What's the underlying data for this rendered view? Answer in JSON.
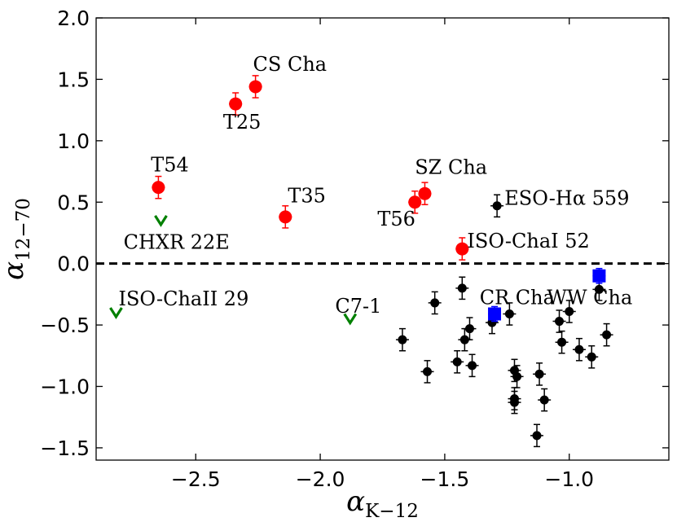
{
  "chart_data": {
    "type": "scatter",
    "xlabel": "α",
    "xlabel_sub": "K−12",
    "ylabel": "α",
    "ylabel_sub": "12−70",
    "xlim": [
      -2.9,
      -0.6
    ],
    "ylim": [
      -1.6,
      2.0
    ],
    "xticks": [
      -2.5,
      -2.0,
      -1.5,
      -1.0
    ],
    "xtick_labels": [
      "−2.5",
      "−2.0",
      "−1.5",
      "−1.0"
    ],
    "yticks": [
      -1.5,
      -1.0,
      -0.5,
      0.0,
      0.5,
      1.0,
      1.5,
      2.0
    ],
    "ytick_labels": [
      "−1.5",
      "−1.0",
      "−0.5",
      "0.0",
      "0.5",
      "1.0",
      "1.5",
      "2.0"
    ],
    "reference_line": {
      "y": 0.0,
      "style": "dashed",
      "color": "#000000"
    },
    "colors": {
      "red": "#ff0000",
      "black": "#000000",
      "blue": "#0000ff",
      "green": "#008000"
    },
    "series": [
      {
        "name": "red",
        "marker": "circle",
        "color": "#ff0000",
        "points": [
          {
            "x": -2.65,
            "y": 0.62,
            "yerr": 0.09
          },
          {
            "x": -2.34,
            "y": 1.3,
            "yerr": 0.09
          },
          {
            "x": -2.26,
            "y": 1.44,
            "yerr": 0.09
          },
          {
            "x": -2.14,
            "y": 0.38,
            "yerr": 0.09
          },
          {
            "x": -1.62,
            "y": 0.5,
            "yerr": 0.09
          },
          {
            "x": -1.58,
            "y": 0.57,
            "yerr": 0.09
          },
          {
            "x": -1.43,
            "y": 0.12,
            "yerr": 0.09
          }
        ]
      },
      {
        "name": "black",
        "marker": "circle-small",
        "color": "#000000",
        "points": [
          {
            "x": -1.29,
            "y": 0.47,
            "yerr": 0.09
          },
          {
            "x": -1.67,
            "y": -0.62,
            "yerr": 0.09
          },
          {
            "x": -1.57,
            "y": -0.88,
            "yerr": 0.09
          },
          {
            "x": -1.54,
            "y": -0.32,
            "yerr": 0.09
          },
          {
            "x": -1.45,
            "y": -0.8,
            "yerr": 0.09
          },
          {
            "x": -1.43,
            "y": -0.2,
            "yerr": 0.09
          },
          {
            "x": -1.42,
            "y": -0.62,
            "yerr": 0.09
          },
          {
            "x": -1.4,
            "y": -0.53,
            "yerr": 0.09
          },
          {
            "x": -1.39,
            "y": -0.83,
            "yerr": 0.09
          },
          {
            "x": -1.31,
            "y": -0.48,
            "yerr": 0.09
          },
          {
            "x": -1.24,
            "y": -0.41,
            "yerr": 0.09
          },
          {
            "x": -1.22,
            "y": -0.87,
            "yerr": 0.09
          },
          {
            "x": -1.21,
            "y": -0.92,
            "yerr": 0.09
          },
          {
            "x": -1.22,
            "y": -1.1,
            "yerr": 0.09
          },
          {
            "x": -1.22,
            "y": -1.13,
            "yerr": 0.09
          },
          {
            "x": -1.13,
            "y": -1.4,
            "yerr": 0.09
          },
          {
            "x": -1.12,
            "y": -0.9,
            "yerr": 0.09
          },
          {
            "x": -1.1,
            "y": -1.11,
            "yerr": 0.09
          },
          {
            "x": -1.04,
            "y": -0.47,
            "yerr": 0.09
          },
          {
            "x": -1.03,
            "y": -0.64,
            "yerr": 0.09
          },
          {
            "x": -1.0,
            "y": -0.39,
            "yerr": 0.09
          },
          {
            "x": -0.96,
            "y": -0.7,
            "yerr": 0.09
          },
          {
            "x": -0.91,
            "y": -0.76,
            "yerr": 0.09
          },
          {
            "x": -0.88,
            "y": -0.21,
            "yerr": 0.09
          },
          {
            "x": -0.85,
            "y": -0.58,
            "yerr": 0.09
          }
        ]
      },
      {
        "name": "blue",
        "marker": "square",
        "color": "#0000ff",
        "points": [
          {
            "x": -1.3,
            "y": -0.41,
            "yerr": 0.06
          },
          {
            "x": -0.88,
            "y": -0.1,
            "yerr": 0.06
          }
        ]
      },
      {
        "name": "green",
        "marker": "v-upper-limit",
        "color": "#008000",
        "points": [
          {
            "x": -2.64,
            "y": 0.35
          },
          {
            "x": -2.82,
            "y": -0.4
          },
          {
            "x": -1.88,
            "y": -0.45
          }
        ]
      }
    ],
    "annotations": [
      {
        "text": "CS Cha",
        "x": -2.27,
        "y": 1.57
      },
      {
        "text": "T25",
        "x": -2.39,
        "y": 1.1
      },
      {
        "text": "T54",
        "x": -2.68,
        "y": 0.75
      },
      {
        "text": "T35",
        "x": -2.13,
        "y": 0.5
      },
      {
        "text": "SZ Cha",
        "x": -1.62,
        "y": 0.73
      },
      {
        "text": "T56",
        "x": -1.77,
        "y": 0.31
      },
      {
        "text": "ESO-Hα 559",
        "x": -1.26,
        "y": 0.48
      },
      {
        "text": "CHXR 22E",
        "x": -2.79,
        "y": 0.12
      },
      {
        "text": "ISO-ChaI 52",
        "x": -1.41,
        "y": 0.13
      },
      {
        "text": "ISO-ChaII 29",
        "x": -2.81,
        "y": -0.34
      },
      {
        "text": "C7-1",
        "x": -1.94,
        "y": -0.4
      },
      {
        "text": "CR Cha",
        "x": -1.36,
        "y": -0.33
      },
      {
        "text": "WW Cha",
        "x": -1.09,
        "y": -0.33
      }
    ]
  }
}
